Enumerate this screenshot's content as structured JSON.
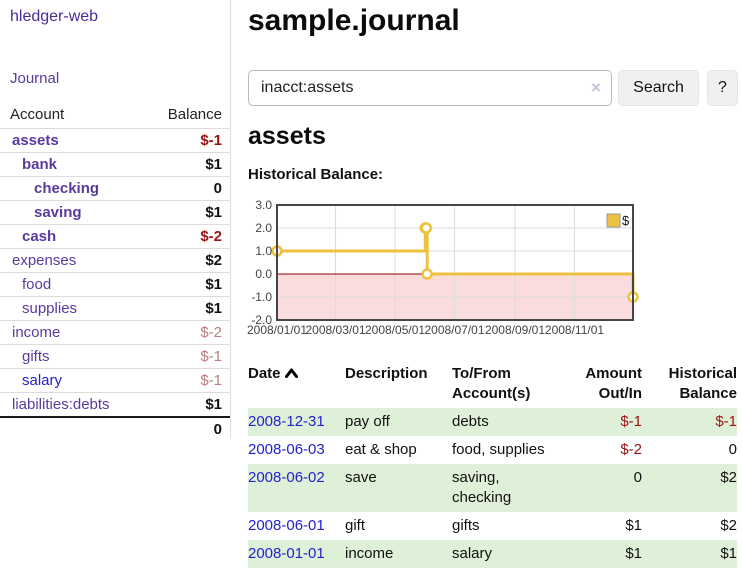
{
  "sidebar": {
    "app_title": "hledger-web",
    "journal_link": "Journal",
    "accounts_table": {
      "headers": {
        "account": "Account",
        "balance": "Balance"
      },
      "rows": [
        {
          "name": "assets",
          "balance": "$-1",
          "indent": 1,
          "matched": true,
          "neg": "strong"
        },
        {
          "name": "bank",
          "balance": "$1",
          "indent": 2,
          "matched": true
        },
        {
          "name": "checking",
          "balance": "0",
          "indent": 3,
          "matched": true
        },
        {
          "name": "saving",
          "balance": "$1",
          "indent": 3,
          "matched": true
        },
        {
          "name": "cash",
          "balance": "$-2",
          "indent": 2,
          "matched": true,
          "neg": "strong"
        },
        {
          "name": "expenses",
          "balance": "$2",
          "indent": 1
        },
        {
          "name": "food",
          "balance": "$1",
          "indent": 2
        },
        {
          "name": "supplies",
          "balance": "$1",
          "indent": 2
        },
        {
          "name": "income",
          "balance": "$-2",
          "indent": 1,
          "neg": "soft"
        },
        {
          "name": "gifts",
          "balance": "$-1",
          "indent": 2,
          "neg": "soft"
        },
        {
          "name": "salary",
          "balance": "$-1",
          "indent": 2,
          "neg": "soft",
          "link": "blue"
        },
        {
          "name": "liabilities:debts",
          "balance": "$1",
          "indent": 1
        }
      ],
      "total": "0"
    }
  },
  "header": {
    "title": "sample.journal"
  },
  "search": {
    "value": "inacct:assets",
    "clear_icon": "×",
    "button_label": "Search",
    "help_label": "?"
  },
  "account_page": {
    "title": "assets",
    "chart_label": "Historical Balance:"
  },
  "chart_data": {
    "type": "line",
    "style": "step",
    "title": "Historical Balance:",
    "legend": "$",
    "legend_position": "top-right",
    "grid": true,
    "x_range": [
      "2008-01-01",
      "2008-12-31"
    ],
    "y_range": [
      -2,
      3
    ],
    "y_ticks": [
      3,
      2,
      1,
      0,
      -1,
      -2
    ],
    "x_ticks": [
      "2008/01/01",
      "2008/03/01",
      "2008/05/01",
      "2008/07/01",
      "2008/09/01",
      "2008/11/01"
    ],
    "series": [
      {
        "name": "$",
        "color": "#edc240",
        "points": [
          {
            "date": "2008-01-01",
            "value": 1
          },
          {
            "date": "2008-06-01",
            "value": 2
          },
          {
            "date": "2008-06-02",
            "value": 2
          },
          {
            "date": "2008-06-03",
            "value": 0
          },
          {
            "date": "2008-12-31",
            "value": -1
          }
        ]
      }
    ],
    "negative_region_color": "#fbdcdc",
    "zero_line_color": "#8b0000"
  },
  "register": {
    "headers": {
      "date": "Date",
      "description": "Description",
      "accounts": "To/From Account(s)",
      "amount": "Amount Out/In",
      "balance": "Historical Balance"
    },
    "rows": [
      {
        "date": "2008-12-31",
        "description": "pay off",
        "accounts": "debts",
        "amount": "$-1",
        "balance": "$-1"
      },
      {
        "date": "2008-06-03",
        "description": "eat & shop",
        "accounts": "food, supplies",
        "amount": "$-2",
        "balance": "0"
      },
      {
        "date": "2008-06-02",
        "description": "save",
        "accounts": "saving, checking",
        "amount": "0",
        "balance": "$2"
      },
      {
        "date": "2008-06-01",
        "description": "gift",
        "accounts": "gifts",
        "amount": "$1",
        "balance": "$2"
      },
      {
        "date": "2008-01-01",
        "description": "income",
        "accounts": "salary",
        "amount": "$1",
        "balance": "$1"
      }
    ]
  },
  "colors": {
    "link_purple": "#5a3a9e",
    "link_blue": "#2222cc",
    "negative_strong": "#9b1313",
    "negative_soft": "#b87c7c",
    "row_stripe_green": "#dff0d8",
    "chart_line": "#edc240",
    "chart_negative_fill": "#fbdcdc",
    "chart_zero_line": "#8b0000",
    "button_bg": "#f0f0f0"
  }
}
